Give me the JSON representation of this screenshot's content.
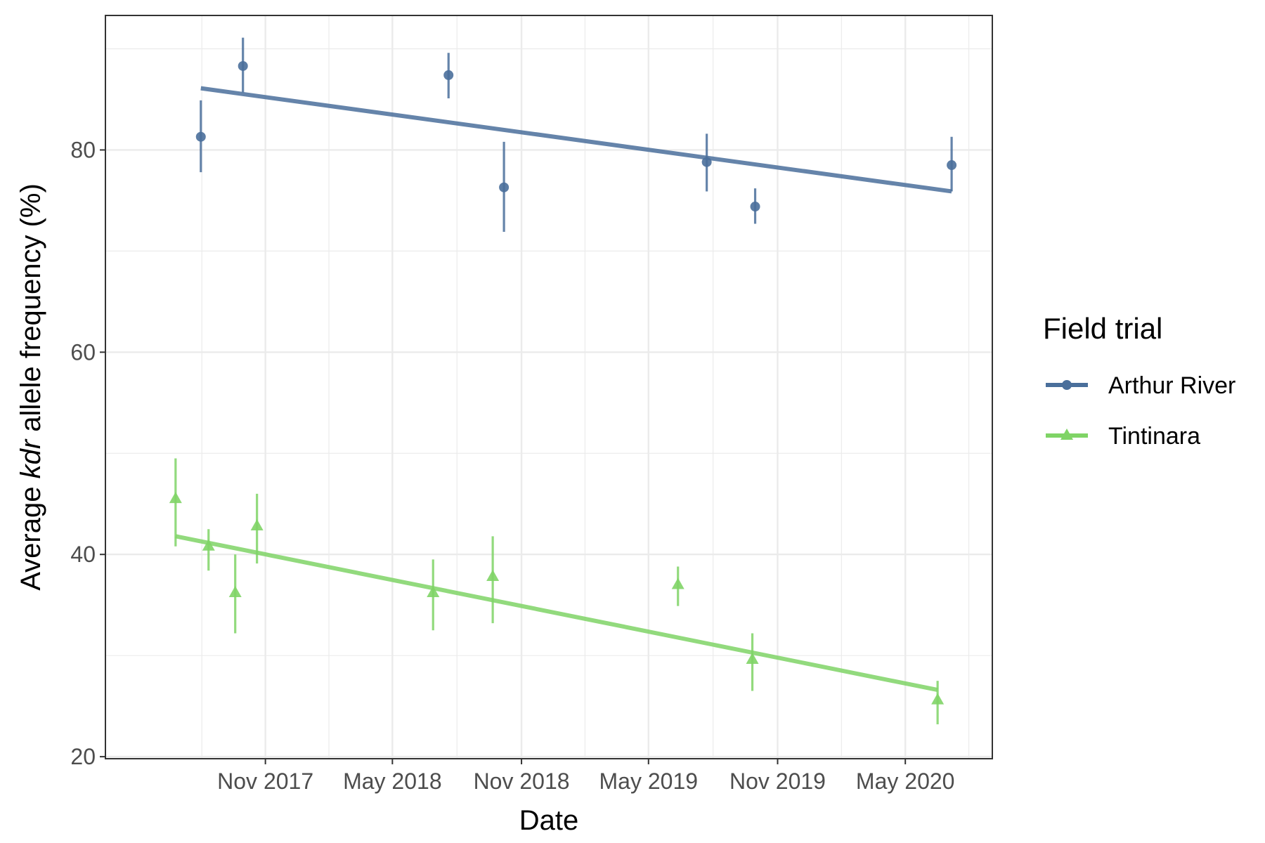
{
  "chart_data": {
    "type": "scatter",
    "xlabel": "Date",
    "ylabel_prefix": "Average ",
    "ylabel_italic": "kdr",
    "ylabel_suffix": " allele frequency (%)",
    "x_ticks": [
      {
        "date": "2017-11-01",
        "label": "Nov 2017"
      },
      {
        "date": "2018-05-01",
        "label": "May 2018"
      },
      {
        "date": "2018-11-01",
        "label": "Nov 2018"
      },
      {
        "date": "2019-05-01",
        "label": "May 2019"
      },
      {
        "date": "2019-11-01",
        "label": "Nov 2019"
      },
      {
        "date": "2020-05-01",
        "label": "May 2020"
      }
    ],
    "xlim": [
      "2017-03-18",
      "2020-09-02"
    ],
    "y_ticks": [
      20,
      40,
      60,
      80
    ],
    "ylim": [
      19.8,
      93.3
    ],
    "grid": true,
    "legend": {
      "title": "Field trial",
      "position": "right",
      "entries": [
        "Arthur River",
        "Tintinara"
      ]
    },
    "series": [
      {
        "name": "Arthur River",
        "color": "#4a6f9b",
        "marker": "circle",
        "points": [
          {
            "x": "2017-08-01",
            "y": 81.3,
            "ymin": 77.8,
            "ymax": 84.9
          },
          {
            "x": "2017-09-30",
            "y": 88.3,
            "ymin": 85.7,
            "ymax": 91.1
          },
          {
            "x": "2018-07-20",
            "y": 87.4,
            "ymin": 85.1,
            "ymax": 89.6
          },
          {
            "x": "2018-10-07",
            "y": 76.3,
            "ymin": 71.9,
            "ymax": 80.8
          },
          {
            "x": "2019-07-23",
            "y": 78.8,
            "ymin": 75.9,
            "ymax": 81.6
          },
          {
            "x": "2019-09-30",
            "y": 74.4,
            "ymin": 72.7,
            "ymax": 76.2
          },
          {
            "x": "2020-07-06",
            "y": 78.5,
            "ymin": 75.9,
            "ymax": 81.3
          }
        ],
        "trend": {
          "x0": "2017-08-01",
          "y0": 86.1,
          "x1": "2020-07-06",
          "y1": 75.9
        }
      },
      {
        "name": "Tintinara",
        "color": "#7fd466",
        "marker": "triangle",
        "points": [
          {
            "x": "2017-06-26",
            "y": 45.5,
            "ymin": 40.8,
            "ymax": 49.5
          },
          {
            "x": "2017-08-12",
            "y": 40.8,
            "ymin": 38.4,
            "ymax": 42.5
          },
          {
            "x": "2017-09-19",
            "y": 36.2,
            "ymin": 32.2,
            "ymax": 40.0
          },
          {
            "x": "2017-10-20",
            "y": 42.8,
            "ymin": 39.1,
            "ymax": 46.0
          },
          {
            "x": "2018-06-28",
            "y": 36.2,
            "ymin": 32.5,
            "ymax": 39.5
          },
          {
            "x": "2018-09-21",
            "y": 37.8,
            "ymin": 33.2,
            "ymax": 41.8
          },
          {
            "x": "2019-06-12",
            "y": 37.0,
            "ymin": 34.9,
            "ymax": 38.8
          },
          {
            "x": "2019-09-26",
            "y": 29.6,
            "ymin": 26.5,
            "ymax": 32.2
          },
          {
            "x": "2020-06-16",
            "y": 25.6,
            "ymin": 23.2,
            "ymax": 27.5
          }
        ],
        "trend": {
          "x0": "2017-06-26",
          "y0": 41.8,
          "x1": "2020-06-16",
          "y1": 26.6
        }
      }
    ]
  }
}
